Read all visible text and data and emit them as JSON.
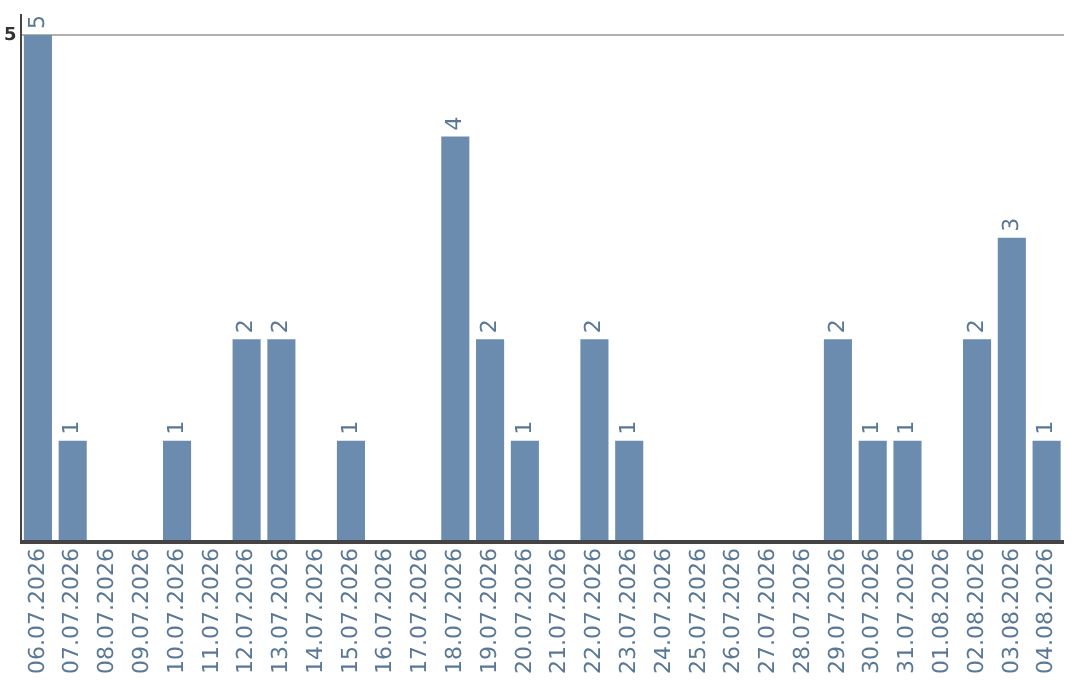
{
  "chart_data": {
    "type": "bar",
    "categories": [
      "06.07.2026",
      "07.07.2026",
      "08.07.2026",
      "09.07.2026",
      "10.07.2026",
      "11.07.2026",
      "12.07.2026",
      "13.07.2026",
      "14.07.2026",
      "15.07.2026",
      "16.07.2026",
      "17.07.2026",
      "18.07.2026",
      "19.07.2026",
      "20.07.2026",
      "21.07.2026",
      "22.07.2026",
      "23.07.2026",
      "24.07.2026",
      "25.07.2026",
      "26.07.2026",
      "27.07.2026",
      "28.07.2026",
      "29.07.2026",
      "30.07.2026",
      "31.07.2026",
      "01.08.2026",
      "02.08.2026",
      "03.08.2026",
      "04.08.2026"
    ],
    "values": [
      5,
      1,
      0,
      0,
      1,
      0,
      2,
      2,
      0,
      1,
      0,
      0,
      4,
      2,
      1,
      0,
      2,
      1,
      0,
      0,
      0,
      0,
      0,
      2,
      1,
      1,
      0,
      2,
      3,
      1
    ],
    "value_labels": [
      "5",
      "1",
      null,
      null,
      "1",
      null,
      "2",
      "2",
      null,
      "1",
      null,
      null,
      "4",
      "2",
      "1",
      null,
      "2",
      "1",
      null,
      null,
      null,
      null,
      null,
      "2",
      "1",
      "1",
      null,
      "2",
      "3",
      "1"
    ],
    "color": "#6b8cae",
    "ylim": [
      0,
      5.2
    ],
    "yticks": [
      {
        "value": 0,
        "label": null
      },
      5
    ],
    "grid": "y",
    "legend": false
  }
}
